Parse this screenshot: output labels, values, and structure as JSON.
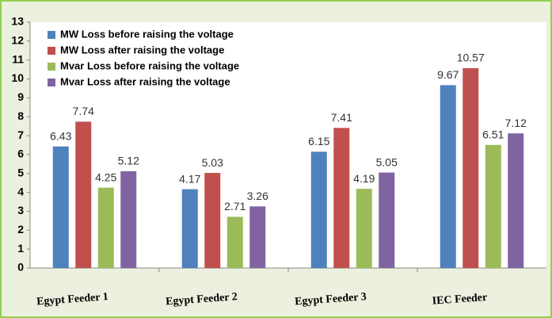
{
  "chart_data": {
    "type": "bar",
    "categories": [
      "Egypt Feeder 1",
      "Egypt Feeder 2",
      "Egypt Feeder 3",
      "IEC Feeder"
    ],
    "series": [
      {
        "name": "MW Loss before raising the voltage",
        "color": "#4f81bd",
        "values": [
          6.43,
          4.17,
          6.15,
          9.67
        ]
      },
      {
        "name": "MW Loss after raising the voltage",
        "color": "#c0504d",
        "values": [
          7.74,
          5.03,
          7.41,
          10.57
        ]
      },
      {
        "name": "Mvar Loss before raising the voltage",
        "color": "#9bbb59",
        "values": [
          4.25,
          2.71,
          4.19,
          6.51
        ]
      },
      {
        "name": "Mvar Loss after raising the voltage",
        "color": "#8064a2",
        "values": [
          5.12,
          3.26,
          5.05,
          7.12
        ]
      }
    ],
    "ylim": [
      0,
      13
    ],
    "yticks": [
      0,
      1,
      2,
      3,
      4,
      5,
      6,
      7,
      8,
      9,
      10,
      11,
      12,
      13
    ],
    "legend": "upper-left"
  }
}
